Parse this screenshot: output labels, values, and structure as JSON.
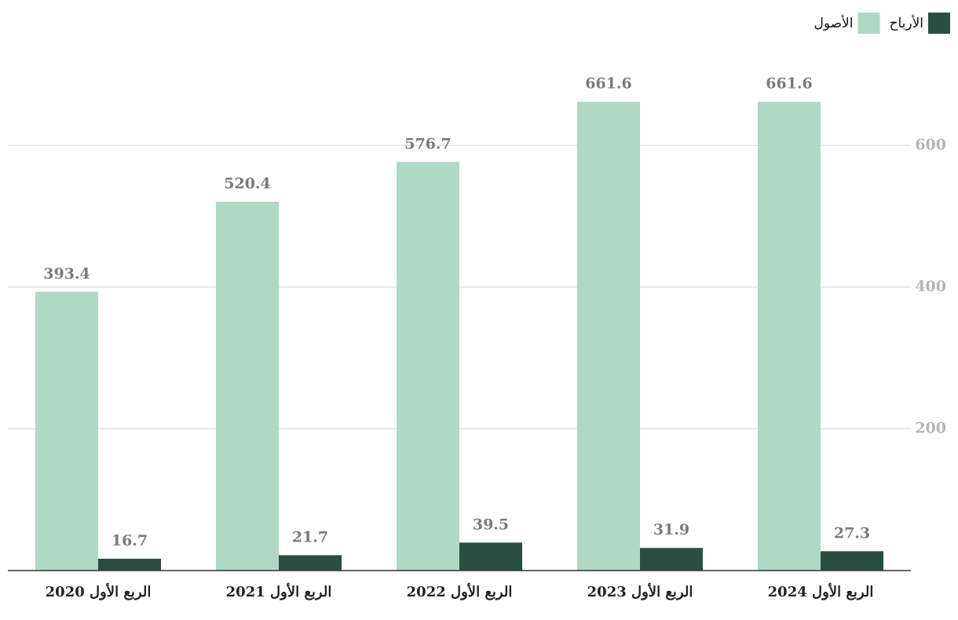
{
  "chart_data": {
    "type": "bar",
    "categories": [
      "الربع الأول 2020",
      "الربع الأول 2021",
      "الربع الأول 2022",
      "الربع الأول 2023",
      "الربع الأول 2024"
    ],
    "series": [
      {
        "name": "الأصول",
        "color": "#afd8c5",
        "values": [
          393.4,
          520.4,
          576.7,
          661.6,
          661.6
        ]
      },
      {
        "name": "الأرباح",
        "color": "#2a4f3f",
        "values": [
          16.7,
          21.7,
          39.5,
          31.9,
          27.3
        ]
      }
    ],
    "ylim": [
      0,
      700
    ],
    "yticks": [
      200,
      400,
      600
    ],
    "grid": true
  }
}
